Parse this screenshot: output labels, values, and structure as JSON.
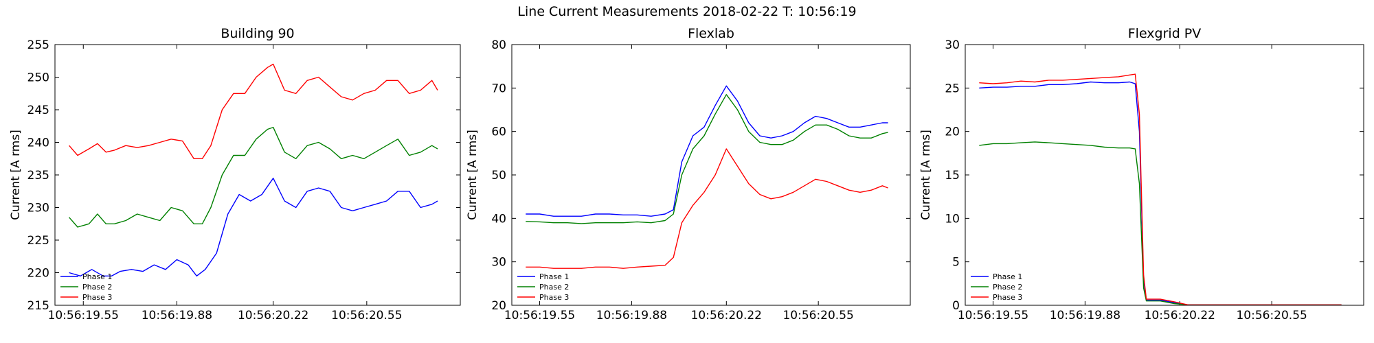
{
  "figure": {
    "title": "Line Current Measurements 2018-02-22 T: 10:56:19"
  },
  "colors": {
    "Phase 1": "#0000ff",
    "Phase 2": "#008000",
    "Phase 3": "#ff0000"
  },
  "chart_data": [
    {
      "type": "line",
      "title": "Building 90",
      "xlabel": "",
      "ylabel": "Current [A rms]",
      "xlim": [
        19.45,
        20.88
      ],
      "ylim": [
        215,
        255
      ],
      "yticks": [
        215,
        220,
        225,
        230,
        235,
        240,
        245,
        250,
        255
      ],
      "xticks": [
        {
          "value": 19.55,
          "label": "10:56:19.55"
        },
        {
          "value": 19.88,
          "label": "10:56:19.88"
        },
        {
          "value": 20.22,
          "label": "10:56:20.22"
        },
        {
          "value": 20.55,
          "label": "10:56:20.55"
        }
      ],
      "legend": "lower-left",
      "grid": false,
      "series": [
        {
          "name": "Phase 1",
          "x": [
            19.5,
            19.54,
            19.58,
            19.62,
            19.65,
            19.68,
            19.72,
            19.76,
            19.8,
            19.84,
            19.88,
            19.92,
            19.95,
            19.98,
            20.02,
            20.06,
            20.1,
            20.14,
            20.18,
            20.22,
            20.26,
            20.3,
            20.34,
            20.38,
            20.42,
            20.46,
            20.5,
            20.54,
            20.58,
            20.62,
            20.66,
            20.7,
            20.74,
            20.78,
            20.8
          ],
          "y": [
            220,
            219.5,
            220.5,
            219.5,
            219.5,
            220.2,
            220.5,
            220.2,
            221.2,
            220.5,
            222,
            221.2,
            219.5,
            220.5,
            223,
            229,
            232,
            231,
            232,
            234.5,
            231,
            230,
            232.5,
            233,
            232.5,
            230,
            229.5,
            230,
            230.5,
            231,
            232.5,
            232.5,
            230,
            230.5,
            231
          ]
        },
        {
          "name": "Phase 2",
          "x": [
            19.5,
            19.53,
            19.57,
            19.6,
            19.63,
            19.66,
            19.7,
            19.74,
            19.78,
            19.82,
            19.86,
            19.9,
            19.94,
            19.97,
            20.0,
            20.04,
            20.08,
            20.12,
            20.16,
            20.2,
            20.22,
            20.26,
            20.3,
            20.34,
            20.38,
            20.42,
            20.46,
            20.5,
            20.54,
            20.58,
            20.62,
            20.66,
            20.7,
            20.74,
            20.78,
            20.8
          ],
          "y": [
            228.5,
            227,
            227.5,
            229,
            227.5,
            227.5,
            228,
            229,
            228.5,
            228,
            230,
            229.5,
            227.5,
            227.5,
            230,
            235,
            238,
            238,
            240.5,
            242,
            242.3,
            238.5,
            237.5,
            239.5,
            240,
            239,
            237.5,
            238,
            237.5,
            238.5,
            239.5,
            240.5,
            238,
            238.5,
            239.5,
            239
          ]
        },
        {
          "name": "Phase 3",
          "x": [
            19.5,
            19.53,
            19.57,
            19.6,
            19.63,
            19.66,
            19.7,
            19.74,
            19.78,
            19.82,
            19.86,
            19.9,
            19.94,
            19.97,
            20.0,
            20.04,
            20.08,
            20.12,
            20.16,
            20.2,
            20.22,
            20.26,
            20.3,
            20.34,
            20.38,
            20.42,
            20.46,
            20.5,
            20.54,
            20.58,
            20.62,
            20.66,
            20.7,
            20.74,
            20.78,
            20.8
          ],
          "y": [
            239.5,
            238,
            239,
            239.8,
            238.5,
            238.8,
            239.5,
            239.2,
            239.5,
            240,
            240.5,
            240.2,
            237.5,
            237.5,
            239.5,
            245,
            247.5,
            247.5,
            250,
            251.5,
            252,
            248,
            247.5,
            249.5,
            250,
            248.5,
            247,
            246.5,
            247.5,
            248,
            249.5,
            249.5,
            247.5,
            248,
            249.5,
            248
          ]
        }
      ]
    },
    {
      "type": "line",
      "title": "Flexlab",
      "xlabel": "",
      "ylabel": "Current [A rms]",
      "xlim": [
        19.45,
        20.88
      ],
      "ylim": [
        20,
        80
      ],
      "yticks": [
        20,
        30,
        40,
        50,
        60,
        70,
        80
      ],
      "xticks": [
        {
          "value": 19.55,
          "label": "10:56:19.55"
        },
        {
          "value": 19.88,
          "label": "10:56:19.88"
        },
        {
          "value": 20.22,
          "label": "10:56:20.22"
        },
        {
          "value": 20.55,
          "label": "10:56:20.55"
        }
      ],
      "legend": "lower-left",
      "grid": false,
      "series": [
        {
          "name": "Phase 1",
          "x": [
            19.5,
            19.55,
            19.6,
            19.65,
            19.7,
            19.75,
            19.8,
            19.85,
            19.9,
            19.95,
            20.0,
            20.03,
            20.06,
            20.1,
            20.14,
            20.18,
            20.22,
            20.26,
            20.3,
            20.34,
            20.38,
            20.42,
            20.46,
            20.5,
            20.54,
            20.58,
            20.62,
            20.66,
            20.7,
            20.74,
            20.78,
            20.8
          ],
          "y": [
            41,
            41,
            40.5,
            40.5,
            40.5,
            41,
            41,
            40.8,
            40.8,
            40.5,
            41,
            42,
            53,
            59,
            61,
            66,
            70.5,
            67,
            62,
            59,
            58.5,
            59,
            60,
            62,
            63.5,
            63,
            62,
            61,
            61,
            61.5,
            62,
            62
          ]
        },
        {
          "name": "Phase 2",
          "x": [
            19.5,
            19.55,
            19.6,
            19.65,
            19.7,
            19.75,
            19.8,
            19.85,
            19.9,
            19.95,
            20.0,
            20.03,
            20.06,
            20.1,
            20.14,
            20.18,
            20.22,
            20.26,
            20.3,
            20.34,
            20.38,
            20.42,
            20.46,
            20.5,
            20.54,
            20.58,
            20.62,
            20.66,
            20.7,
            20.74,
            20.78,
            20.8
          ],
          "y": [
            39.3,
            39.2,
            39,
            39,
            38.8,
            39,
            39,
            39,
            39.2,
            39,
            39.5,
            41,
            50,
            56,
            59,
            64,
            68.5,
            65,
            60,
            57.5,
            57,
            57,
            58,
            60,
            61.5,
            61.5,
            60.5,
            59,
            58.5,
            58.5,
            59.5,
            59.8
          ]
        },
        {
          "name": "Phase 3",
          "x": [
            19.5,
            19.55,
            19.6,
            19.65,
            19.7,
            19.75,
            19.8,
            19.85,
            19.9,
            19.95,
            20.0,
            20.03,
            20.06,
            20.1,
            20.14,
            20.18,
            20.22,
            20.26,
            20.3,
            20.34,
            20.38,
            20.42,
            20.46,
            20.5,
            20.54,
            20.58,
            20.62,
            20.66,
            20.7,
            20.74,
            20.78,
            20.8
          ],
          "y": [
            28.8,
            28.8,
            28.5,
            28.5,
            28.5,
            28.8,
            28.8,
            28.5,
            28.8,
            29,
            29.2,
            31,
            39,
            43,
            46,
            50,
            56,
            52,
            48,
            45.5,
            44.5,
            45,
            46,
            47.5,
            49,
            48.5,
            47.5,
            46.5,
            46,
            46.5,
            47.5,
            47
          ]
        }
      ]
    },
    {
      "type": "line",
      "title": "Flexgrid PV",
      "xlabel": "",
      "ylabel": "Current [A rms]",
      "xlim": [
        19.45,
        20.88
      ],
      "ylim": [
        0,
        30
      ],
      "yticks": [
        0,
        5,
        10,
        15,
        20,
        25,
        30
      ],
      "xticks": [
        {
          "value": 19.55,
          "label": "10:56:19.55"
        },
        {
          "value": 19.88,
          "label": "10:56:19.88"
        },
        {
          "value": 20.22,
          "label": "10:56:20.22"
        },
        {
          "value": 20.55,
          "label": "10:56:20.55"
        }
      ],
      "legend": "lower-left",
      "grid": false,
      "series": [
        {
          "name": "Phase 1",
          "x": [
            19.5,
            19.55,
            19.6,
            19.65,
            19.7,
            19.75,
            19.8,
            19.85,
            19.9,
            19.95,
            20.0,
            20.04,
            20.06,
            20.075,
            20.09,
            20.1,
            20.15,
            20.2,
            20.25,
            20.4,
            20.6,
            20.8
          ],
          "y": [
            25,
            25.1,
            25.1,
            25.2,
            25.2,
            25.4,
            25.4,
            25.5,
            25.7,
            25.6,
            25.6,
            25.7,
            25.5,
            20,
            3,
            0.6,
            0.6,
            0.3,
            0.05,
            0.05,
            0.05,
            0.05
          ]
        },
        {
          "name": "Phase 2",
          "x": [
            19.5,
            19.55,
            19.6,
            19.65,
            19.7,
            19.75,
            19.8,
            19.85,
            19.9,
            19.95,
            20.0,
            20.04,
            20.06,
            20.075,
            20.09,
            20.1,
            20.15,
            20.2,
            20.25,
            20.4,
            20.6,
            20.8
          ],
          "y": [
            18.4,
            18.6,
            18.6,
            18.7,
            18.8,
            18.7,
            18.6,
            18.5,
            18.4,
            18.2,
            18.1,
            18.1,
            18.0,
            14,
            2,
            0.5,
            0.5,
            0.2,
            0.05,
            0.05,
            0.05,
            0.05
          ]
        },
        {
          "name": "Phase 3",
          "x": [
            19.5,
            19.55,
            19.6,
            19.65,
            19.7,
            19.75,
            19.8,
            19.85,
            19.9,
            19.95,
            20.0,
            20.04,
            20.06,
            20.075,
            20.09,
            20.1,
            20.15,
            20.2,
            20.25,
            20.4,
            20.6,
            20.8
          ],
          "y": [
            25.6,
            25.5,
            25.6,
            25.8,
            25.7,
            25.9,
            25.9,
            26.0,
            26.1,
            26.2,
            26.3,
            26.5,
            26.6,
            22,
            3.5,
            0.7,
            0.7,
            0.4,
            0.05,
            0.05,
            0.05,
            0.05
          ]
        }
      ]
    }
  ]
}
